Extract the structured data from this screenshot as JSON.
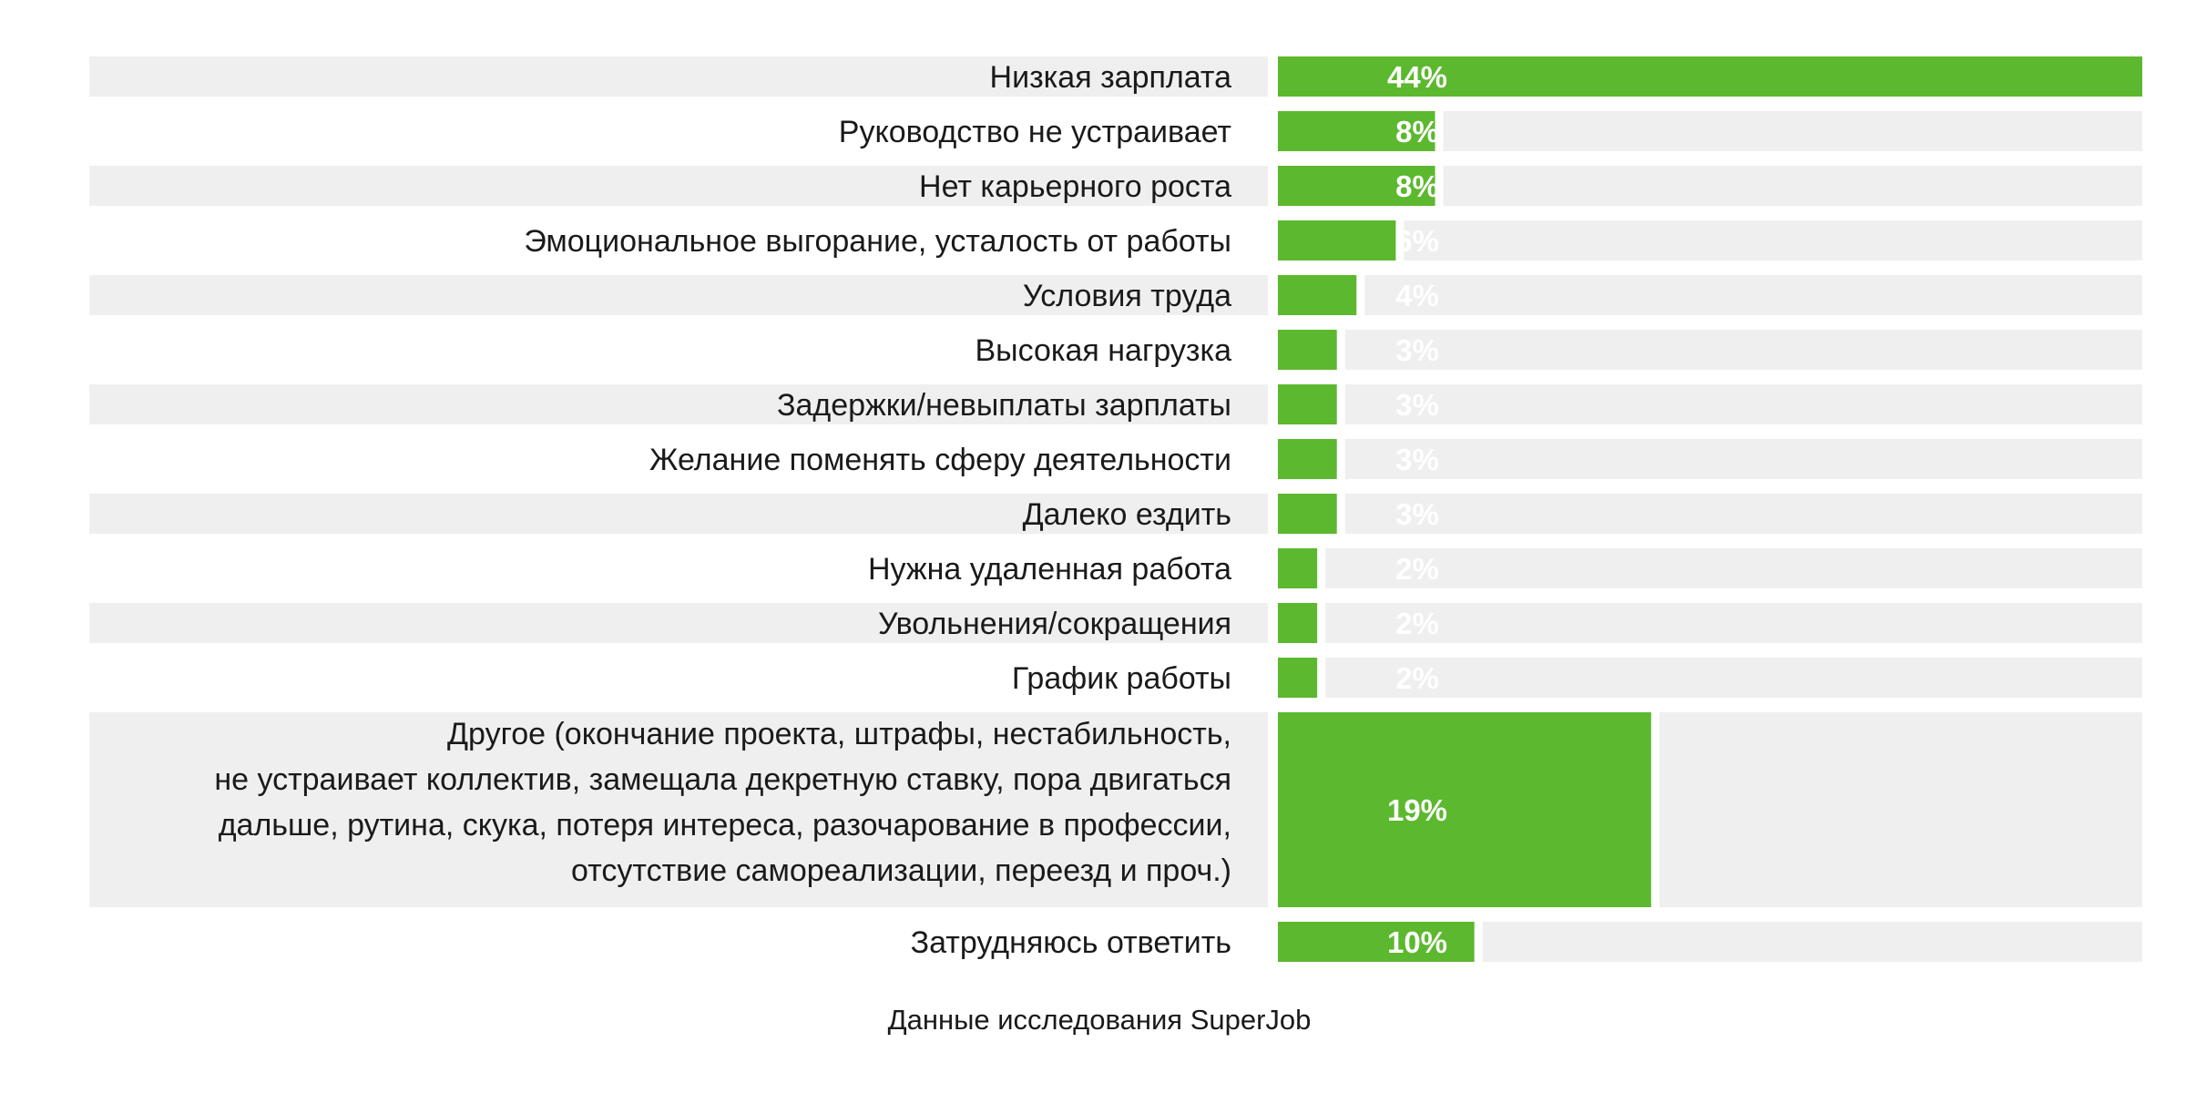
{
  "chart_data": {
    "type": "bar",
    "orientation": "horizontal",
    "categories": [
      "Низкая зарплата",
      "Руководство не устраивает",
      "Нет карьерного роста",
      "Эмоциональное выгорание, усталость от работы",
      "Условия труда",
      "Высокая нагрузка",
      "Задержки/невыплаты зарплаты",
      "Желание поменять сферу деятельности",
      "Далеко ездить",
      "Нужна удаленная работа",
      "Увольнения/сокращения",
      "График работы",
      "Другое (окончание проекта, штрафы, нестабильность,\nне устраивает коллектив, замещала декретную ставку, пора двигаться\nдальше, рутина, скука, потеря интереса, разочарование в профессии,\nотсутствие самореализации, переезд и проч.)",
      "Затрудняюсь ответить"
    ],
    "values": [
      44,
      8,
      8,
      6,
      4,
      3,
      3,
      3,
      3,
      2,
      2,
      2,
      19,
      10
    ],
    "value_labels": [
      "44%",
      "8%",
      "8%",
      "6%",
      "4%",
      "3%",
      "3%",
      "3%",
      "3%",
      "2%",
      "2%",
      "2%",
      "19%",
      "10%"
    ],
    "unit": "%",
    "source": "Данные исследования SuperJob",
    "colors": {
      "bar": "#5cb82e",
      "row_shade": "#efefef",
      "track": "#efefef",
      "text": "#1a1a1a",
      "value_text": "#ffffff"
    }
  }
}
